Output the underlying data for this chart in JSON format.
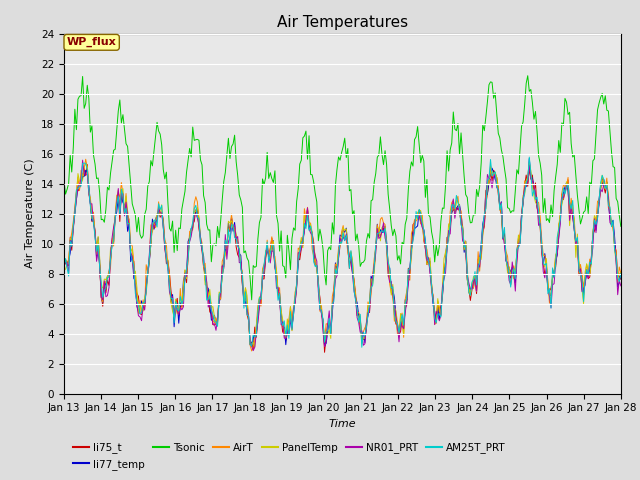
{
  "title": "Air Temperatures",
  "xlabel": "Time",
  "ylabel": "Air Temperature (C)",
  "ylim": [
    0,
    24
  ],
  "yticks": [
    0,
    2,
    4,
    6,
    8,
    10,
    12,
    14,
    16,
    18,
    20,
    22,
    24
  ],
  "xtick_labels": [
    "Jan 13",
    "Jan 14",
    "Jan 15",
    "Jan 16",
    "Jan 17",
    "Jan 18",
    "Jan 19",
    "Jan 20",
    "Jan 21",
    "Jan 22",
    "Jan 23",
    "Jan 24",
    "Jan 25",
    "Jan 26",
    "Jan 27",
    "Jan 28"
  ],
  "series_colors": {
    "li75_t": "#cc0000",
    "li77_temp": "#0000cc",
    "Tsonic": "#00cc00",
    "AirT": "#ff8800",
    "PanelTemp": "#cccc00",
    "NR01_PRT": "#aa00aa",
    "AM25T_PRT": "#00cccc"
  },
  "bg_color": "#e8e8e8",
  "wp_flux_box_color": "#ffff99",
  "wp_flux_text_color": "#880000",
  "grid_color": "#ffffff",
  "title_fontsize": 11,
  "label_fontsize": 8,
  "legend_fontsize": 7.5
}
